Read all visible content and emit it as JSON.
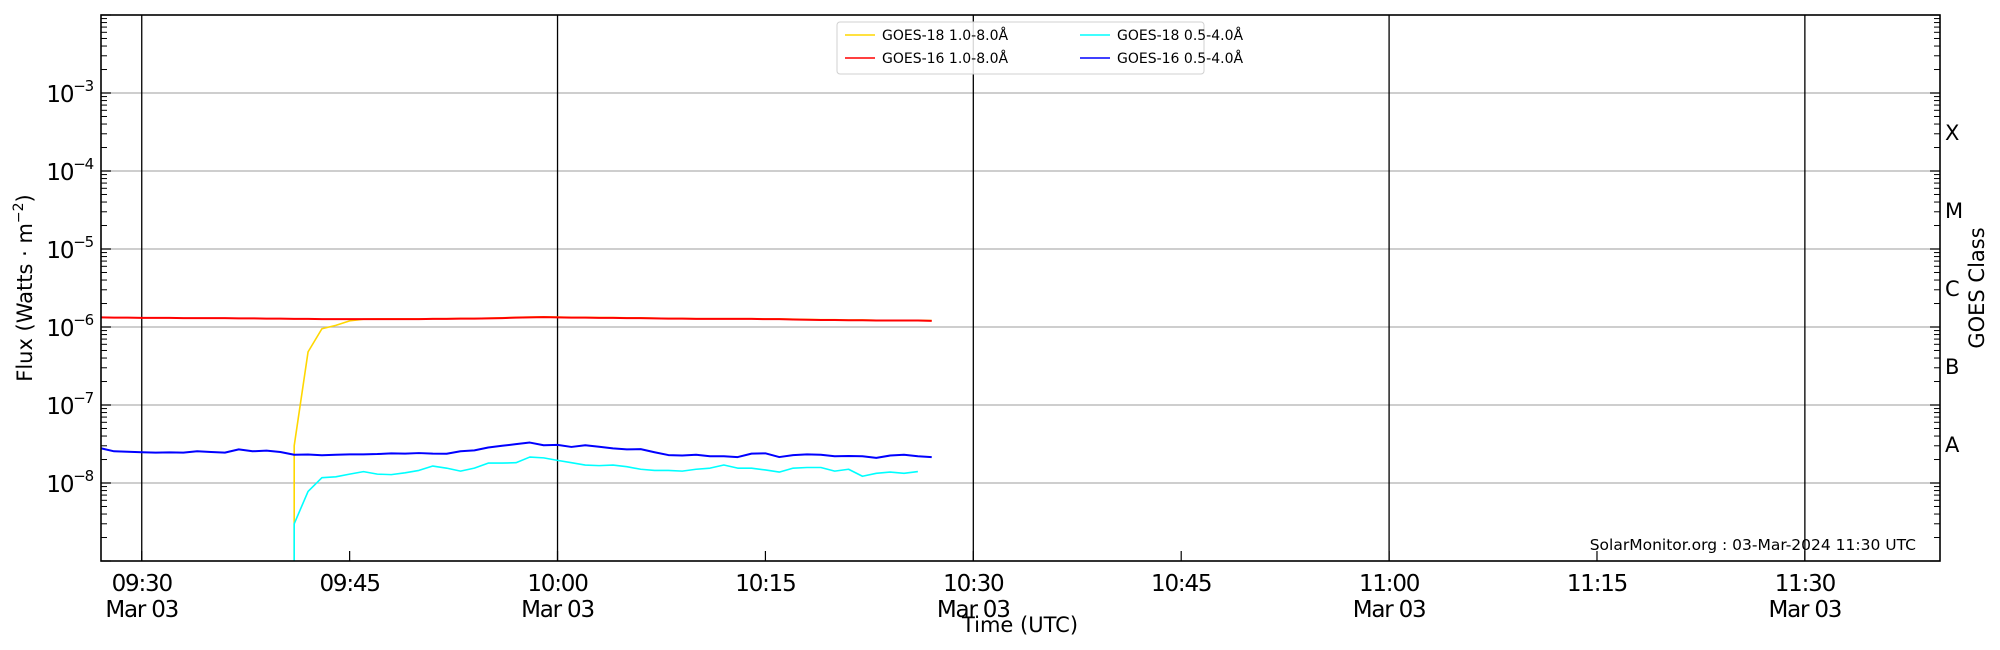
{
  "chart_data": {
    "type": "line",
    "title": "",
    "xlabel": "Time (UTC)",
    "ylabel": "Flux (Watts · m⁻²)",
    "y2label": "GOES Class",
    "yscale": "log",
    "ylim": [
      1e-09,
      0.01
    ],
    "xlim": [
      "09:27",
      "11:40"
    ],
    "date": "Mar 03",
    "grid": "horizontal at each decade",
    "legend_placement": "top-center",
    "y_ticks": [
      {
        "value": 1e-08,
        "base": "10",
        "exp": "−8"
      },
      {
        "value": 1e-07,
        "base": "10",
        "exp": "−7"
      },
      {
        "value": 1e-06,
        "base": "10",
        "exp": "−6"
      },
      {
        "value": 1e-05,
        "base": "10",
        "exp": "−5"
      },
      {
        "value": 0.0001,
        "base": "10",
        "exp": "−4"
      },
      {
        "value": 0.001,
        "base": "10",
        "exp": "−3"
      }
    ],
    "x_ticks": [
      {
        "time": "09:30",
        "label": "09:30",
        "sub": "Mar 03"
      },
      {
        "time": "09:45",
        "label": "09:45",
        "sub": ""
      },
      {
        "time": "10:00",
        "label": "10:00",
        "sub": "Mar 03"
      },
      {
        "time": "10:15",
        "label": "10:15",
        "sub": ""
      },
      {
        "time": "10:30",
        "label": "10:30",
        "sub": "Mar 03"
      },
      {
        "time": "10:45",
        "label": "10:45",
        "sub": ""
      },
      {
        "time": "11:00",
        "label": "11:00",
        "sub": "Mar 03"
      },
      {
        "time": "11:15",
        "label": "11:15",
        "sub": ""
      },
      {
        "time": "11:30",
        "label": "11:30",
        "sub": "Mar 03"
      }
    ],
    "vertical_lines": [
      "09:30",
      "10:00",
      "10:30",
      "11:00",
      "11:30"
    ],
    "goes_classes": [
      {
        "label": "A",
        "value": 3.16e-08
      },
      {
        "label": "B",
        "value": 3.16e-07
      },
      {
        "label": "C",
        "value": 3.16e-06
      },
      {
        "label": "M",
        "value": 3.16e-05
      },
      {
        "label": "X",
        "value": 0.000316
      }
    ],
    "annotation": "SolarMonitor.org : 03-Mar-2024 11:30 UTC",
    "series": [
      {
        "name": "GOES-18 1.0-8.0Å",
        "color": "#ffd700",
        "start": "09:41",
        "step_minutes": 1,
        "unit_scale": 1e-06,
        "pre_value": 0.0001,
        "values": [
          0.03,
          0.48,
          0.95,
          1.05,
          1.2,
          1.26,
          1.27,
          1.27,
          1.27,
          1.27,
          1.28,
          1.28,
          1.29,
          1.29,
          1.3,
          1.31,
          1.33,
          1.34,
          1.35,
          1.34,
          1.33,
          1.33,
          1.32,
          1.32,
          1.31,
          1.31,
          1.3,
          1.29,
          1.29,
          1.28,
          1.28,
          1.28,
          1.28,
          1.28,
          1.27,
          1.27,
          1.26,
          1.25,
          1.24,
          1.24,
          1.23,
          1.23,
          1.22,
          1.22,
          1.22,
          1.22,
          1.21
        ]
      },
      {
        "name": "GOES-16 1.0-8.0Å",
        "color": "#ff0000",
        "start": "09:27",
        "step_minutes": 1,
        "unit_scale": 1e-06,
        "values": [
          1.33,
          1.32,
          1.32,
          1.31,
          1.31,
          1.31,
          1.3,
          1.3,
          1.3,
          1.3,
          1.29,
          1.29,
          1.28,
          1.28,
          1.27,
          1.27,
          1.26,
          1.26,
          1.26,
          1.26,
          1.26,
          1.26,
          1.26,
          1.26,
          1.27,
          1.27,
          1.28,
          1.28,
          1.29,
          1.3,
          1.32,
          1.33,
          1.34,
          1.33,
          1.32,
          1.32,
          1.31,
          1.31,
          1.3,
          1.3,
          1.29,
          1.28,
          1.28,
          1.27,
          1.27,
          1.27,
          1.27,
          1.27,
          1.26,
          1.26,
          1.25,
          1.24,
          1.23,
          1.23,
          1.22,
          1.22,
          1.21,
          1.21,
          1.21,
          1.21,
          1.2
        ]
      },
      {
        "name": "GOES-18 0.5-4.0Å",
        "color": "#00ffff",
        "start": "09:41",
        "step_minutes": 1,
        "unit_scale": 1e-08,
        "pre_value": 0.01,
        "values": [
          0.3,
          0.78,
          1.17,
          1.2,
          1.3,
          1.4,
          1.3,
          1.28,
          1.35,
          1.45,
          1.65,
          1.55,
          1.42,
          1.55,
          1.8,
          1.8,
          1.82,
          2.15,
          2.1,
          1.95,
          1.82,
          1.7,
          1.67,
          1.7,
          1.62,
          1.5,
          1.45,
          1.45,
          1.42,
          1.5,
          1.55,
          1.7,
          1.55,
          1.55,
          1.47,
          1.38,
          1.55,
          1.58,
          1.58,
          1.42,
          1.5,
          1.22,
          1.33,
          1.38,
          1.33,
          1.4
        ]
      },
      {
        "name": "GOES-16 0.5-4.0Å",
        "color": "#0000ff",
        "start": "09:27",
        "step_minutes": 1,
        "unit_scale": 1e-08,
        "values": [
          2.8,
          2.55,
          2.52,
          2.48,
          2.45,
          2.47,
          2.45,
          2.55,
          2.5,
          2.45,
          2.7,
          2.55,
          2.6,
          2.5,
          2.3,
          2.32,
          2.27,
          2.3,
          2.33,
          2.33,
          2.35,
          2.4,
          2.38,
          2.42,
          2.38,
          2.37,
          2.55,
          2.62,
          2.85,
          3.0,
          3.15,
          3.3,
          3.05,
          3.08,
          2.9,
          3.05,
          2.92,
          2.78,
          2.7,
          2.72,
          2.48,
          2.28,
          2.25,
          2.3,
          2.2,
          2.2,
          2.15,
          2.38,
          2.4,
          2.15,
          2.28,
          2.33,
          2.3,
          2.2,
          2.22,
          2.2,
          2.1,
          2.25,
          2.3,
          2.2,
          2.15
        ]
      }
    ]
  }
}
